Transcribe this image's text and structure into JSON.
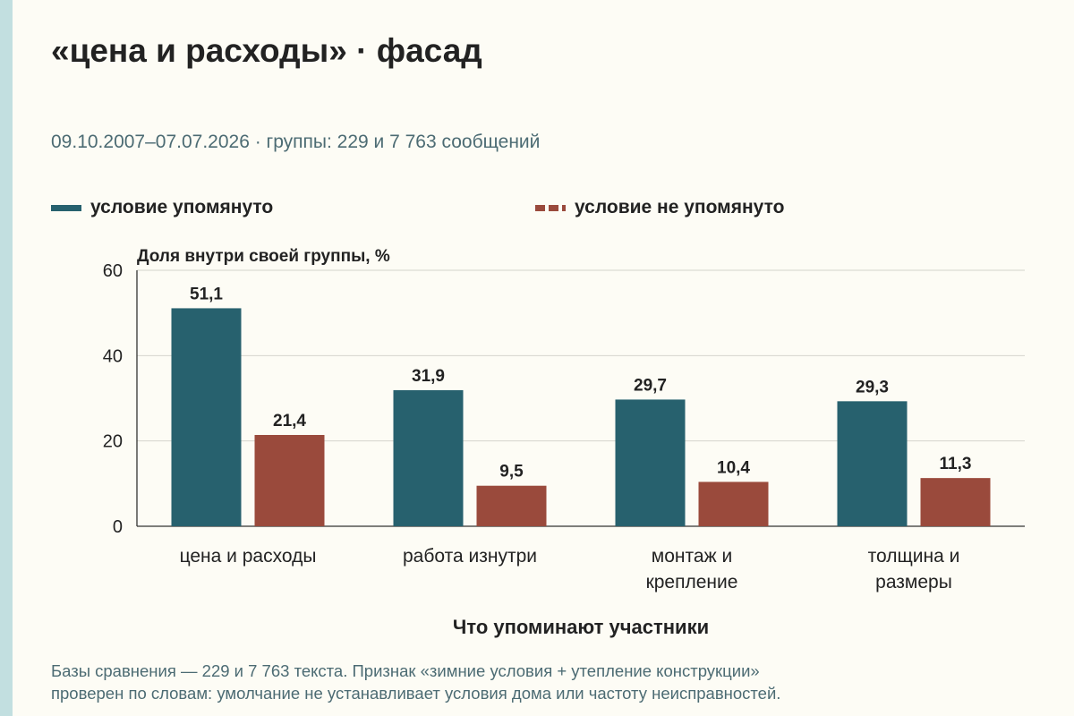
{
  "title": "«цена и расходы» · фасад",
  "subtitle": "09.10.2007–07.07.2026 · группы: 229 и 7 763 сообщений",
  "legend": [
    {
      "label": "условие упомянуто",
      "color": "#27616e"
    },
    {
      "label": "условие не упомянуто",
      "color": "#9a4a3c"
    }
  ],
  "footnote_lines": [
    "Базы сравнения — 229 и 7 763 текста. Признак «зимние условия + утепление конструкции»",
    "проверен по словам: умолчание не устанавливает условия дома или частоту неисправностей."
  ],
  "chart_data": {
    "type": "bar",
    "categories": [
      [
        "цена и расходы"
      ],
      [
        "работа изнутри"
      ],
      [
        "монтаж и",
        "крепление"
      ],
      [
        "толщина и",
        "размеры"
      ]
    ],
    "series": [
      {
        "name": "условие упомянуто",
        "color": "#27616e",
        "values": [
          51.1,
          31.9,
          29.7,
          29.3
        ],
        "labels": [
          "51,1",
          "31,9",
          "29,7",
          "29,3"
        ]
      },
      {
        "name": "условие не упомянуто",
        "color": "#9a4a3c",
        "values": [
          21.4,
          9.5,
          10.4,
          11.3
        ],
        "labels": [
          "21,4",
          "9,5",
          "10,4",
          "11,3"
        ]
      }
    ],
    "ylabel": "Доля внутри своей группы, %",
    "xlabel": "Что упоминают участники",
    "ylim": [
      0,
      60
    ],
    "yticks": [
      0,
      20,
      40,
      60
    ],
    "grid": true
  }
}
